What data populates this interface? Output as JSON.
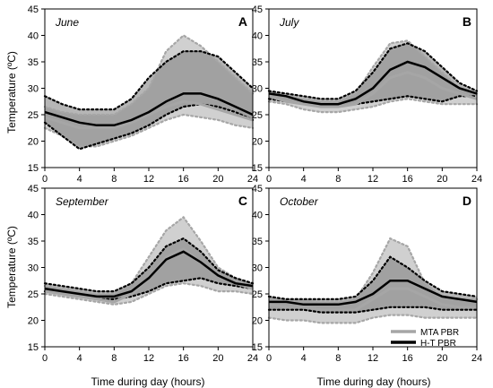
{
  "figure": {
    "ylabel": "Temperature (ºC)",
    "xlabel": "Time during day (hours)",
    "legend": [
      {
        "label": "MTA PBR",
        "color": "#a6a6a6"
      },
      {
        "label": "H-T PBR",
        "color": "#000000"
      }
    ]
  },
  "chart_data": [
    {
      "type": "line",
      "panel": "A",
      "title": "June",
      "xlim": [
        0,
        24
      ],
      "ylim": [
        15,
        45
      ],
      "xticks": [
        0,
        4,
        8,
        12,
        16,
        20,
        24
      ],
      "yticks": [
        15,
        20,
        25,
        30,
        35,
        40,
        45
      ],
      "x": [
        0,
        2,
        4,
        6,
        8,
        10,
        12,
        14,
        16,
        18,
        20,
        22,
        24
      ],
      "series": [
        {
          "name": "MTA PBR",
          "mean": [
            24.5,
            23.5,
            22.5,
            22.5,
            22.5,
            23.5,
            25,
            26.5,
            27.5,
            27,
            26,
            25,
            24
          ],
          "max": [
            26.5,
            25.5,
            25,
            25,
            25,
            27,
            30,
            37,
            40,
            38,
            35,
            32,
            29
          ],
          "min": [
            22.5,
            21,
            19,
            19,
            20,
            21,
            22.5,
            24,
            25,
            24.5,
            24,
            23,
            22.5
          ]
        },
        {
          "name": "H-T PBR",
          "mean": [
            25.5,
            24.5,
            23.5,
            23,
            23,
            24,
            25.5,
            27.5,
            29,
            29,
            28,
            26.5,
            25
          ],
          "max": [
            28.5,
            27,
            26,
            26,
            26,
            28,
            32,
            35,
            37,
            37,
            36,
            33,
            30
          ],
          "min": [
            23.5,
            21,
            18.5,
            19.5,
            20.5,
            21.5,
            23,
            25,
            26.5,
            27,
            26.5,
            25.5,
            24
          ]
        }
      ]
    },
    {
      "type": "line",
      "panel": "B",
      "title": "July",
      "xlim": [
        0,
        24
      ],
      "ylim": [
        15,
        45
      ],
      "xticks": [
        0,
        4,
        8,
        12,
        16,
        20,
        24
      ],
      "yticks": [
        15,
        20,
        25,
        30,
        35,
        40,
        45
      ],
      "x": [
        0,
        2,
        4,
        6,
        8,
        10,
        12,
        14,
        16,
        18,
        20,
        22,
        24
      ],
      "series": [
        {
          "name": "MTA PBR",
          "mean": [
            28.5,
            27.5,
            27,
            26.5,
            26.5,
            27,
            29,
            32,
            33,
            32,
            30,
            29,
            28
          ],
          "max": [
            29.5,
            28.5,
            28,
            27.5,
            27.5,
            29,
            34,
            38.5,
            39,
            36,
            33,
            30,
            29
          ],
          "min": [
            27.5,
            27,
            26,
            25.5,
            25.5,
            26,
            26.5,
            27.5,
            28,
            27.5,
            27,
            27,
            27
          ]
        },
        {
          "name": "H-T PBR",
          "mean": [
            29,
            28.5,
            27.5,
            27,
            27,
            28,
            30,
            33.5,
            35,
            34,
            32,
            30,
            29
          ],
          "max": [
            29.5,
            29,
            28.5,
            28,
            28,
            29.5,
            33,
            37.5,
            38.5,
            37,
            34,
            31,
            29.5
          ],
          "min": [
            28,
            27.5,
            27,
            26.5,
            26.5,
            27,
            27.5,
            28,
            28.5,
            28,
            27.5,
            28.5,
            28.5
          ]
        }
      ]
    },
    {
      "type": "line",
      "panel": "C",
      "title": "September",
      "xlim": [
        0,
        24
      ],
      "ylim": [
        15,
        45
      ],
      "xticks": [
        0,
        4,
        8,
        12,
        16,
        20,
        24
      ],
      "yticks": [
        15,
        20,
        25,
        30,
        35,
        40,
        45
      ],
      "x": [
        0,
        2,
        4,
        6,
        8,
        10,
        12,
        14,
        16,
        18,
        20,
        22,
        24
      ],
      "series": [
        {
          "name": "MTA PBR",
          "mean": [
            25.5,
            25,
            24.5,
            24,
            23.5,
            25,
            28,
            32,
            33.5,
            31,
            28.5,
            27,
            26
          ],
          "max": [
            26.5,
            26,
            25.5,
            25,
            25,
            27,
            32,
            37,
            39.5,
            35,
            30,
            28,
            27
          ],
          "min": [
            25,
            24.5,
            24,
            23.5,
            23,
            23.5,
            25,
            26.5,
            27,
            26.5,
            25.5,
            25.5,
            25
          ]
        },
        {
          "name": "H-T PBR",
          "mean": [
            26,
            25.5,
            25,
            24.5,
            24.5,
            25.5,
            28,
            31.5,
            33,
            31,
            28.5,
            27,
            26.5
          ],
          "max": [
            27,
            26.5,
            26,
            25.5,
            25.5,
            27,
            30,
            34,
            35.5,
            33,
            29.5,
            28,
            27
          ],
          "min": [
            25.5,
            25,
            24.5,
            24,
            24,
            24.5,
            25.5,
            27,
            27.5,
            28,
            27,
            26.5,
            26
          ]
        }
      ]
    },
    {
      "type": "line",
      "panel": "D",
      "title": "October",
      "xlim": [
        0,
        24
      ],
      "ylim": [
        15,
        45
      ],
      "xticks": [
        0,
        4,
        8,
        12,
        16,
        20,
        24
      ],
      "yticks": [
        15,
        20,
        25,
        30,
        35,
        40,
        45
      ],
      "x": [
        0,
        2,
        4,
        6,
        8,
        10,
        12,
        14,
        16,
        18,
        20,
        22,
        24
      ],
      "series": [
        {
          "name": "MTA PBR",
          "mean": [
            23,
            22.5,
            22.5,
            22,
            22,
            22,
            24,
            26,
            26,
            24.5,
            23,
            22.5,
            22.5
          ],
          "max": [
            24.5,
            24,
            24,
            23.5,
            23.5,
            24,
            29,
            35.5,
            34,
            27,
            24.5,
            24,
            24
          ],
          "min": [
            20.5,
            20,
            20,
            19.5,
            19.5,
            19.5,
            20.5,
            21,
            21,
            20.5,
            20.5,
            20.5,
            20.5
          ]
        },
        {
          "name": "H-T PBR",
          "mean": [
            23.5,
            23.5,
            23,
            23,
            23,
            23.5,
            25,
            27.5,
            27.5,
            26,
            24.5,
            24,
            23.5
          ],
          "max": [
            24.5,
            24,
            24,
            24,
            24,
            24.5,
            27.5,
            32,
            30,
            27.5,
            25.5,
            25,
            24.5
          ],
          "min": [
            22,
            22,
            22,
            21.5,
            21.5,
            21.5,
            22,
            22.5,
            22.5,
            22.5,
            22,
            22,
            22
          ]
        }
      ]
    }
  ]
}
